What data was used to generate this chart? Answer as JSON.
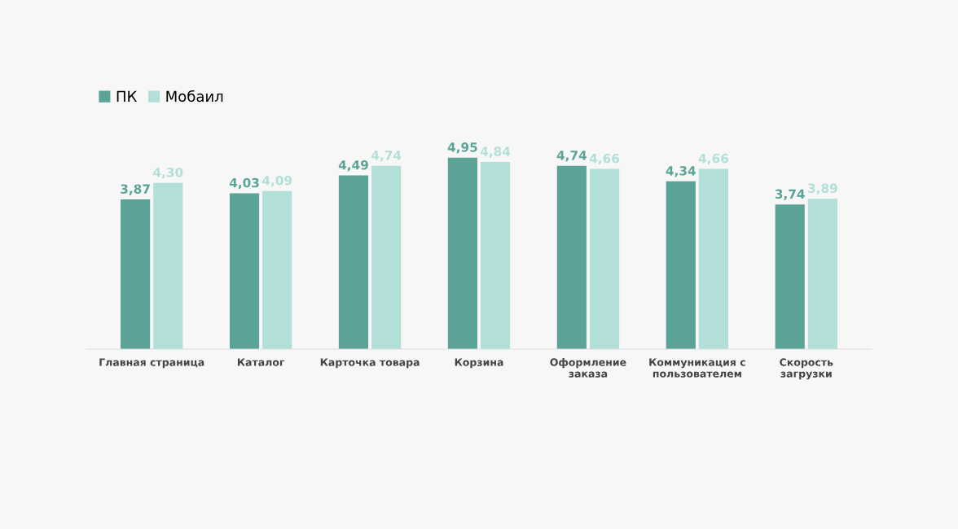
{
  "chart_data": {
    "type": "bar",
    "categories": [
      "Главная страница",
      "Каталог",
      "Карточка товара",
      "Корзина",
      "Оформление заказа",
      "Коммуникация с пользователем",
      "Скорость загрузки"
    ],
    "series": [
      {
        "name": "ПК",
        "color": "#5ba396",
        "values": [
          3.87,
          4.03,
          4.49,
          4.95,
          4.74,
          4.34,
          3.74
        ],
        "value_labels": [
          "3,87",
          "4,03",
          "4,49",
          "4,95",
          "4,74",
          "4,34",
          "3,74"
        ]
      },
      {
        "name": "Мобаил",
        "color": "#b3dfd9",
        "values": [
          4.3,
          4.09,
          4.74,
          4.84,
          4.66,
          4.66,
          3.89
        ],
        "value_labels": [
          "4,30",
          "4,09",
          "4,74",
          "4,84",
          "4,66",
          "4,66",
          "3,89"
        ]
      }
    ],
    "legend": "top left",
    "grid": false
  }
}
